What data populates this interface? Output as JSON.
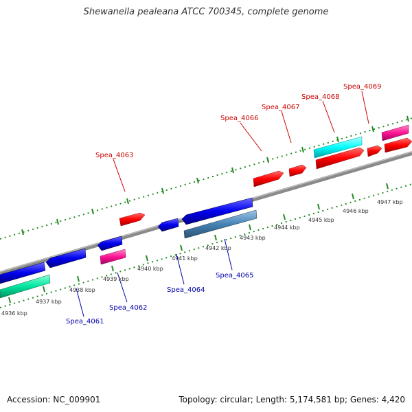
{
  "title": "Shewanella pealeana ATCC 700345, complete genome",
  "footer": {
    "accession": "Accession: NC_009901",
    "info": "Topology: circular; Length: 5,174,581 bp; Genes: 4,420"
  },
  "scale_labels": [
    "4936 kbp",
    "4937 kbp",
    "4938 kbp",
    "4939 kbp",
    "4940 kbp",
    "4941 kbp",
    "4942 kbp",
    "4943 kbp",
    "4944 kbp",
    "4945 kbp",
    "4946 kbp",
    "4947 kbp"
  ],
  "gene_labels_top": [
    "Spea_4063",
    "Spea_4066",
    "Spea_4067",
    "Spea_4068",
    "Spea_4069"
  ],
  "gene_labels_bottom": [
    "Spea_4061",
    "Spea_4062",
    "Spea_4064",
    "Spea_4065"
  ],
  "colors": {
    "forward_gene": "#ff0000",
    "reverse_gene": "#0000ee",
    "cyan_gene": "#00ffff",
    "magenta_gene": "#ff1493",
    "green_gene": "#00e6a0",
    "steelblue_gene": "#4682b4",
    "backbone": "#888888",
    "tick": "#228b22",
    "top_label": "#cc0000",
    "bottom_label": "#0000aa"
  }
}
